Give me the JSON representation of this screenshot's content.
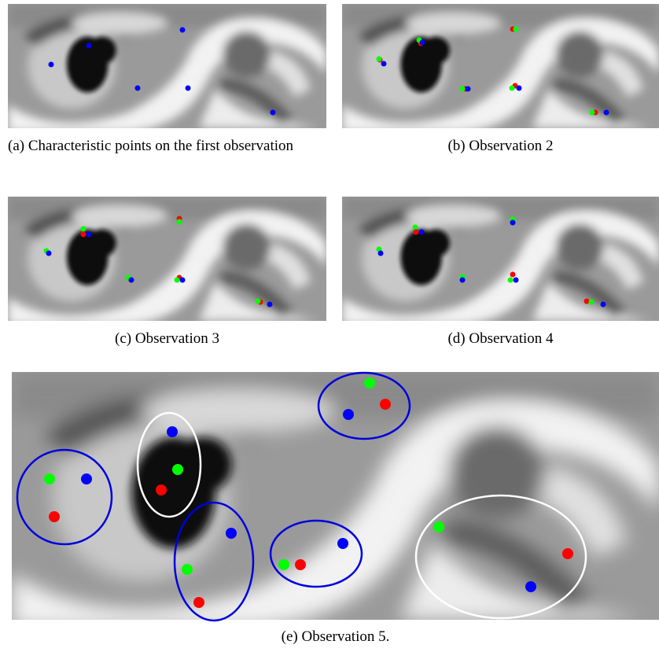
{
  "panels": [
    {
      "caption": "(a) Characteristic points on the first observation"
    },
    {
      "caption": "(b) Observation 2"
    },
    {
      "caption": "(c) Observation 3"
    },
    {
      "caption": "(d) Observation 4"
    },
    {
      "caption": "(e) Observation 5."
    }
  ]
}
